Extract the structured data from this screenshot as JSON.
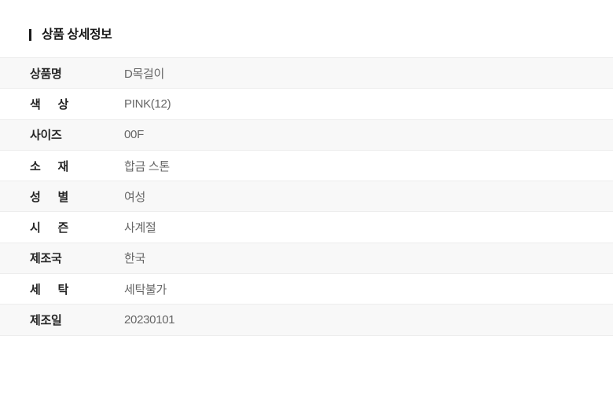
{
  "section": {
    "title": "상품 상세정보"
  },
  "table": {
    "rows": [
      {
        "label": "상품명",
        "value": "D목걸이"
      },
      {
        "label": "색 상",
        "value": "PINK(12)"
      },
      {
        "label": "사이즈",
        "value": "00F"
      },
      {
        "label": "소 재",
        "value": "합금 스톤"
      },
      {
        "label": "성 별",
        "value": "여성"
      },
      {
        "label": "시 즌",
        "value": "사계절"
      },
      {
        "label": "제조국",
        "value": "한국"
      },
      {
        "label": "세 탁",
        "value": "세탁불가"
      },
      {
        "label": "제조일",
        "value": "20230101"
      }
    ]
  },
  "colors": {
    "stripe_row_bg": "#f8f8f8",
    "row_border": "#ededed",
    "title_text": "#1a1a1a",
    "label_text": "#252525",
    "value_text": "#666666",
    "page_bg": "#ffffff"
  }
}
